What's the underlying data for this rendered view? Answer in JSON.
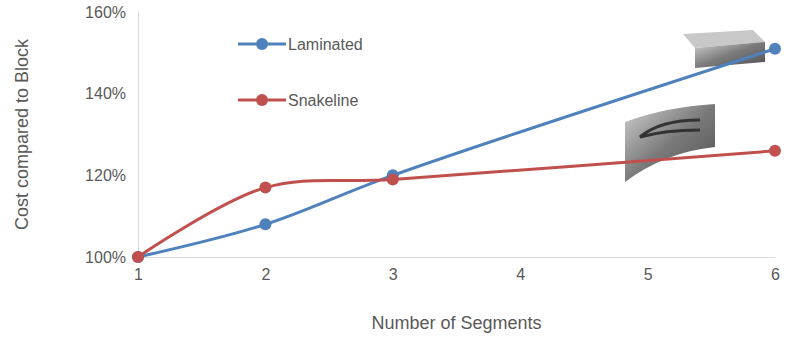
{
  "chart_data": {
    "type": "line",
    "x_label": "Number of Segments",
    "y_label": "Cost compared to Block",
    "x": [
      1,
      2,
      3,
      6
    ],
    "series": [
      {
        "name": "Laminated",
        "color": "#4f81bd",
        "marker": "circle",
        "line_style": "smooth",
        "values": [
          100,
          108,
          120,
          151
        ]
      },
      {
        "name": "Snakeline",
        "color": "#c0504d",
        "marker": "circle",
        "line_style": "smooth",
        "values": [
          100,
          117,
          119,
          126
        ]
      }
    ],
    "xlim": [
      1,
      6
    ],
    "xticks": [
      1,
      2,
      3,
      4,
      5,
      6
    ],
    "ylim": [
      100,
      160
    ],
    "yticks": [
      {
        "value": 100,
        "label": "100%"
      },
      {
        "value": 120,
        "label": "120%"
      },
      {
        "value": 140,
        "label": "140%"
      },
      {
        "value": 160,
        "label": "160%"
      }
    ],
    "grid": false,
    "legend": "upper left"
  }
}
